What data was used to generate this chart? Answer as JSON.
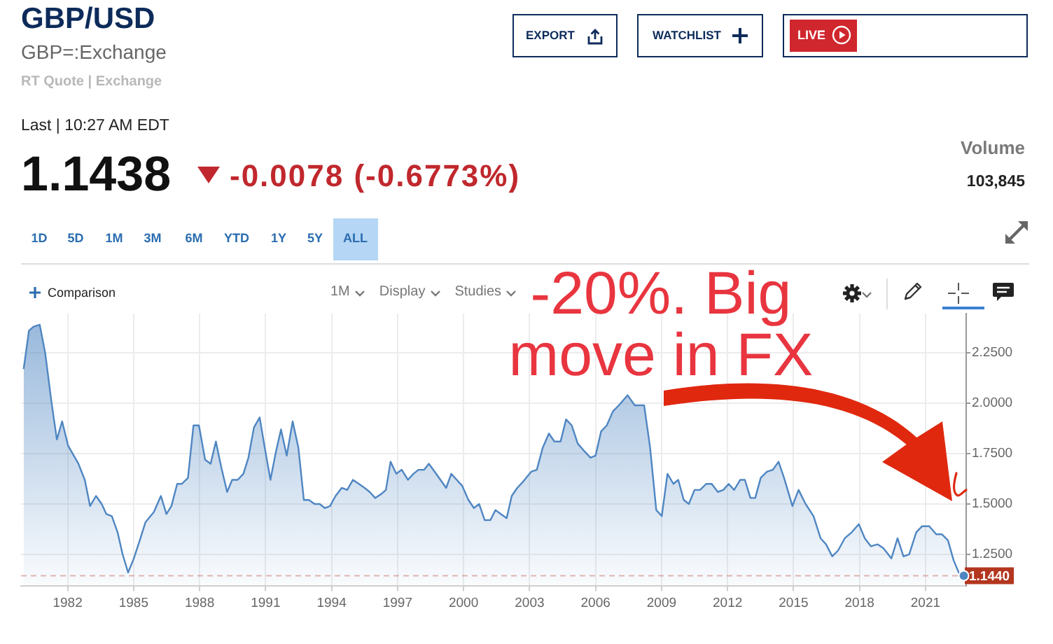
{
  "chart_data": {
    "type": "area",
    "title": "GBP/USD",
    "subtitle": "GBP=:Exchange",
    "x": [
      1980.0,
      1980.24,
      1980.45,
      1980.73,
      1980.98,
      1981.26,
      1981.51,
      1981.75,
      1982.02,
      1982.49,
      1982.78,
      1983.02,
      1983.29,
      1983.55,
      1983.76,
      1984.01,
      1984.27,
      1984.5,
      1984.75,
      1985.01,
      1985.28,
      1985.54,
      1985.92,
      1986.24,
      1986.49,
      1986.72,
      1986.98,
      1987.19,
      1987.47,
      1987.72,
      1987.97,
      1988.25,
      1988.5,
      1988.74,
      1988.99,
      1989.25,
      1989.48,
      1989.73,
      1989.99,
      1990.22,
      1990.47,
      1990.73,
      1990.96,
      1991.22,
      1991.47,
      1991.7,
      1991.96,
      1992.23,
      1992.49,
      1992.74,
      1992.97,
      1993.23,
      1993.46,
      1993.69,
      1993.93,
      1994.18,
      1994.46,
      1994.71,
      1994.97,
      1995.24,
      1995.5,
      1995.73,
      1995.98,
      1996.26,
      1996.47,
      1996.68,
      1996.94,
      1997.19,
      1997.47,
      1997.72,
      1997.95,
      1998.21,
      1998.42,
      1998.69,
      1998.95,
      1999.21,
      1999.44,
      1999.69,
      1999.94,
      2000.22,
      2000.47,
      2000.71,
      2000.96,
      2001.22,
      2001.45,
      2001.7,
      2001.96,
      2002.19,
      2002.44,
      2002.7,
      2003.07,
      2003.33,
      2003.6,
      2003.88,
      2004.13,
      2004.41,
      2004.66,
      2004.92,
      2005.19,
      2005.51,
      2005.77,
      2006.0,
      2006.25,
      2006.51,
      2006.79,
      2007.06,
      2007.46,
      2007.78,
      2008.21,
      2008.48,
      2008.76,
      2009.01,
      2009.27,
      2009.54,
      2009.76,
      2010.01,
      2010.24,
      2010.5,
      2010.75,
      2011.03,
      2011.28,
      2011.56,
      2011.81,
      2012.05,
      2012.3,
      2012.58,
      2012.79,
      2013.04,
      2013.26,
      2013.51,
      2013.79,
      2014.06,
      2014.32,
      2014.57,
      2014.95,
      2015.23,
      2015.55,
      2015.91,
      2016.23,
      2016.48,
      2016.76,
      2017.03,
      2017.33,
      2017.65,
      2017.97,
      2018.24,
      2018.52,
      2018.82,
      2019.09,
      2019.45,
      2019.73,
      2020.0,
      2020.26,
      2020.58,
      2020.85,
      2021.17,
      2021.49,
      2021.74,
      2022.02,
      2022.28,
      2022.55,
      2022.74
    ],
    "values": [
      2.17,
      2.36,
      2.38,
      2.39,
      2.25,
      2.01,
      1.82,
      1.91,
      1.79,
      1.7,
      1.62,
      1.49,
      1.54,
      1.5,
      1.45,
      1.44,
      1.36,
      1.25,
      1.16,
      1.23,
      1.32,
      1.41,
      1.46,
      1.54,
      1.45,
      1.49,
      1.6,
      1.6,
      1.63,
      1.89,
      1.89,
      1.72,
      1.7,
      1.81,
      1.68,
      1.56,
      1.62,
      1.62,
      1.65,
      1.73,
      1.88,
      1.93,
      1.78,
      1.62,
      1.76,
      1.87,
      1.74,
      1.91,
      1.78,
      1.52,
      1.52,
      1.5,
      1.5,
      1.48,
      1.49,
      1.54,
      1.58,
      1.57,
      1.62,
      1.6,
      1.58,
      1.56,
      1.53,
      1.55,
      1.57,
      1.71,
      1.65,
      1.67,
      1.62,
      1.65,
      1.67,
      1.67,
      1.7,
      1.66,
      1.62,
      1.58,
      1.65,
      1.62,
      1.59,
      1.52,
      1.48,
      1.5,
      1.42,
      1.42,
      1.47,
      1.45,
      1.43,
      1.54,
      1.58,
      1.61,
      1.66,
      1.67,
      1.78,
      1.85,
      1.81,
      1.81,
      1.92,
      1.89,
      1.8,
      1.76,
      1.73,
      1.74,
      1.86,
      1.89,
      1.96,
      1.99,
      2.04,
      1.99,
      1.99,
      1.78,
      1.47,
      1.44,
      1.65,
      1.6,
      1.62,
      1.52,
      1.5,
      1.57,
      1.57,
      1.6,
      1.6,
      1.56,
      1.57,
      1.6,
      1.57,
      1.62,
      1.62,
      1.53,
      1.53,
      1.63,
      1.66,
      1.67,
      1.71,
      1.63,
      1.49,
      1.57,
      1.5,
      1.44,
      1.33,
      1.3,
      1.24,
      1.27,
      1.33,
      1.36,
      1.4,
      1.33,
      1.29,
      1.3,
      1.28,
      1.23,
      1.33,
      1.24,
      1.25,
      1.36,
      1.39,
      1.39,
      1.35,
      1.35,
      1.32,
      1.22,
      1.15,
      1.144
    ],
    "color": "#4f86c2",
    "xlim": [
      1979.88,
      2022.85
    ],
    "xticks": [
      1982,
      1985,
      1988,
      1991,
      1994,
      1997,
      2000,
      2003,
      2006,
      2009,
      2012,
      2015,
      2018,
      2021
    ],
    "ylim": [
      1.095,
      2.445
    ],
    "yticks": [
      {
        "value": 1.25,
        "label": "1.2500"
      },
      {
        "value": 1.5,
        "label": "1.5000"
      },
      {
        "value": 1.75,
        "label": "1.7500"
      },
      {
        "value": 2.0,
        "label": "2.0000"
      },
      {
        "value": 2.25,
        "label": "2.2500"
      }
    ],
    "grid": true,
    "ref_lines": [
      {
        "axis": "y",
        "value": 1.144,
        "label": "1.1440",
        "color": "#b3361f",
        "line_style": "dashed"
      }
    ],
    "annotations": [
      "RT Quote | Exchange",
      "Last | 10:27 AM EDT",
      "1.1438",
      "-0.0078 (-0.6773%)",
      "Volume",
      "103,845",
      "EXPORT",
      "WATCHLIST",
      "LIVE",
      "1D",
      "5D",
      "1M",
      "3M",
      "6M",
      "YTD",
      "1Y",
      "5Y",
      "ALL",
      "Comparison",
      "1M",
      "Display",
      "Studies",
      "-20%. Big move in FX"
    ]
  }
}
